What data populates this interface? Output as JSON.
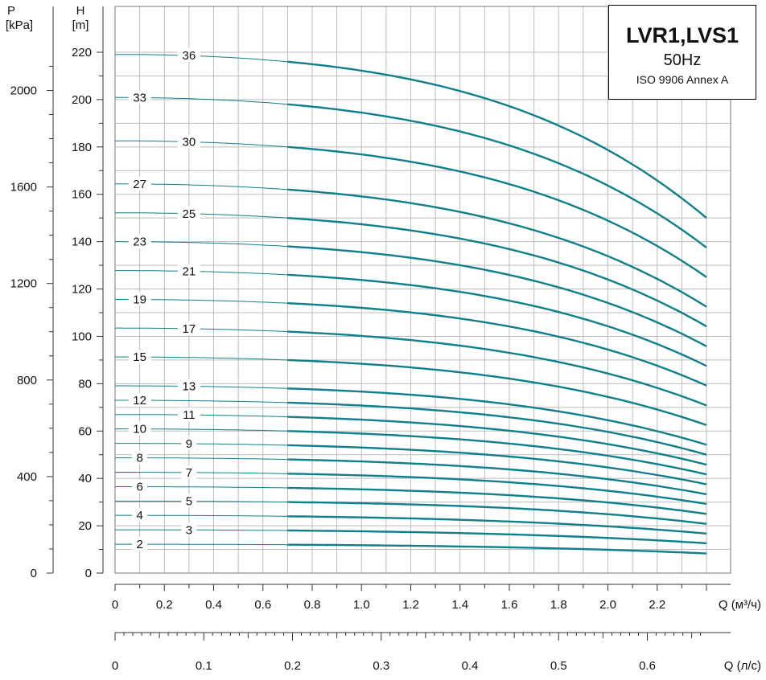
{
  "chart_data": {
    "type": "line",
    "title": "LVR1,LVS1",
    "subtitle": "50Hz",
    "standard": "ISO 9906 Annex A",
    "x_axis": {
      "label": "Q (м³/ч)",
      "range": [
        0,
        2.4
      ],
      "ticks": [
        0,
        0.2,
        0.4,
        0.6,
        0.8,
        1.0,
        1.2,
        1.4,
        1.6,
        1.8,
        2.0,
        2.2
      ],
      "tick_labels": [
        "0",
        "0.2",
        "0.4",
        "0.6",
        "0.8",
        "1.0",
        "1.2",
        "1.4",
        "1.6",
        "1.8",
        "2.0",
        "2.2"
      ]
    },
    "x2_axis": {
      "label": "Q (л/с)",
      "range": [
        0,
        0.6667
      ],
      "ticks": [
        0,
        0.1,
        0.2,
        0.3,
        0.4,
        0.5,
        0.6
      ],
      "tick_labels": [
        "0",
        "0.1",
        "0.2",
        "0.3",
        "0.4",
        "0.5",
        "0.6"
      ]
    },
    "y_axis": {
      "label_line1": "H",
      "label_line2": "[m]",
      "range": [
        0,
        220
      ],
      "ticks": [
        0,
        20,
        40,
        60,
        80,
        100,
        120,
        140,
        160,
        180,
        200,
        220
      ],
      "tick_labels": [
        "0",
        "20",
        "40",
        "60",
        "80",
        "100",
        "120",
        "140",
        "160",
        "180",
        "200",
        "220"
      ]
    },
    "y2_axis": {
      "label_line1": "P",
      "label_line2": "[kPa]",
      "range": [
        0,
        2158
      ],
      "ticks": [
        0,
        400,
        800,
        1200,
        1600,
        2000
      ],
      "tick_labels": [
        "0",
        "400",
        "800",
        "1200",
        "1600",
        "2000"
      ]
    },
    "grid": true,
    "legend": "none",
    "line_color": "#0f7f8a",
    "x": [
      0,
      0.7,
      2.4
    ],
    "series": [
      {
        "name": "2",
        "values": [
          12.2,
          12.0,
          8.3
        ],
        "label_x": 0.1
      },
      {
        "name": "3",
        "values": [
          18.3,
          18.0,
          12.6
        ],
        "label_x": 0.3
      },
      {
        "name": "4",
        "values": [
          24.4,
          24.0,
          16.7
        ],
        "label_x": 0.1
      },
      {
        "name": "5",
        "values": [
          30.4,
          30.0,
          20.8
        ],
        "label_x": 0.3
      },
      {
        "name": "6",
        "values": [
          36.5,
          36.0,
          25.0
        ],
        "label_x": 0.1
      },
      {
        "name": "7",
        "values": [
          42.6,
          42.0,
          29.2
        ],
        "label_x": 0.3
      },
      {
        "name": "8",
        "values": [
          48.7,
          48.0,
          33.3
        ],
        "label_x": 0.1
      },
      {
        "name": "9",
        "values": [
          54.8,
          54.0,
          37.5
        ],
        "label_x": 0.3
      },
      {
        "name": "10",
        "values": [
          60.9,
          60.0,
          41.7
        ],
        "label_x": 0.1
      },
      {
        "name": "11",
        "values": [
          67.0,
          66.0,
          45.8
        ],
        "label_x": 0.3
      },
      {
        "name": "12",
        "values": [
          73.0,
          72.0,
          50.0
        ],
        "label_x": 0.1
      },
      {
        "name": "13",
        "values": [
          79.1,
          78.0,
          54.2
        ],
        "label_x": 0.3
      },
      {
        "name": "15",
        "values": [
          91.3,
          90.0,
          62.5
        ],
        "label_x": 0.1
      },
      {
        "name": "17",
        "values": [
          103.5,
          102.0,
          70.8
        ],
        "label_x": 0.3
      },
      {
        "name": "19",
        "values": [
          115.6,
          114.0,
          79.2
        ],
        "label_x": 0.1
      },
      {
        "name": "21",
        "values": [
          127.8,
          126.0,
          87.5
        ],
        "label_x": 0.3
      },
      {
        "name": "23",
        "values": [
          140.0,
          138.0,
          95.8
        ],
        "label_x": 0.1
      },
      {
        "name": "25",
        "values": [
          152.2,
          150.0,
          104.2
        ],
        "label_x": 0.3
      },
      {
        "name": "27",
        "values": [
          164.4,
          162.0,
          112.5
        ],
        "label_x": 0.1
      },
      {
        "name": "30",
        "values": [
          182.6,
          180.0,
          125.0
        ],
        "label_x": 0.3
      },
      {
        "name": "33",
        "values": [
          200.9,
          198.0,
          137.5
        ],
        "label_x": 0.1
      },
      {
        "name": "36",
        "values": [
          219.1,
          216.0,
          150.0
        ],
        "label_x": 0.3
      }
    ]
  }
}
